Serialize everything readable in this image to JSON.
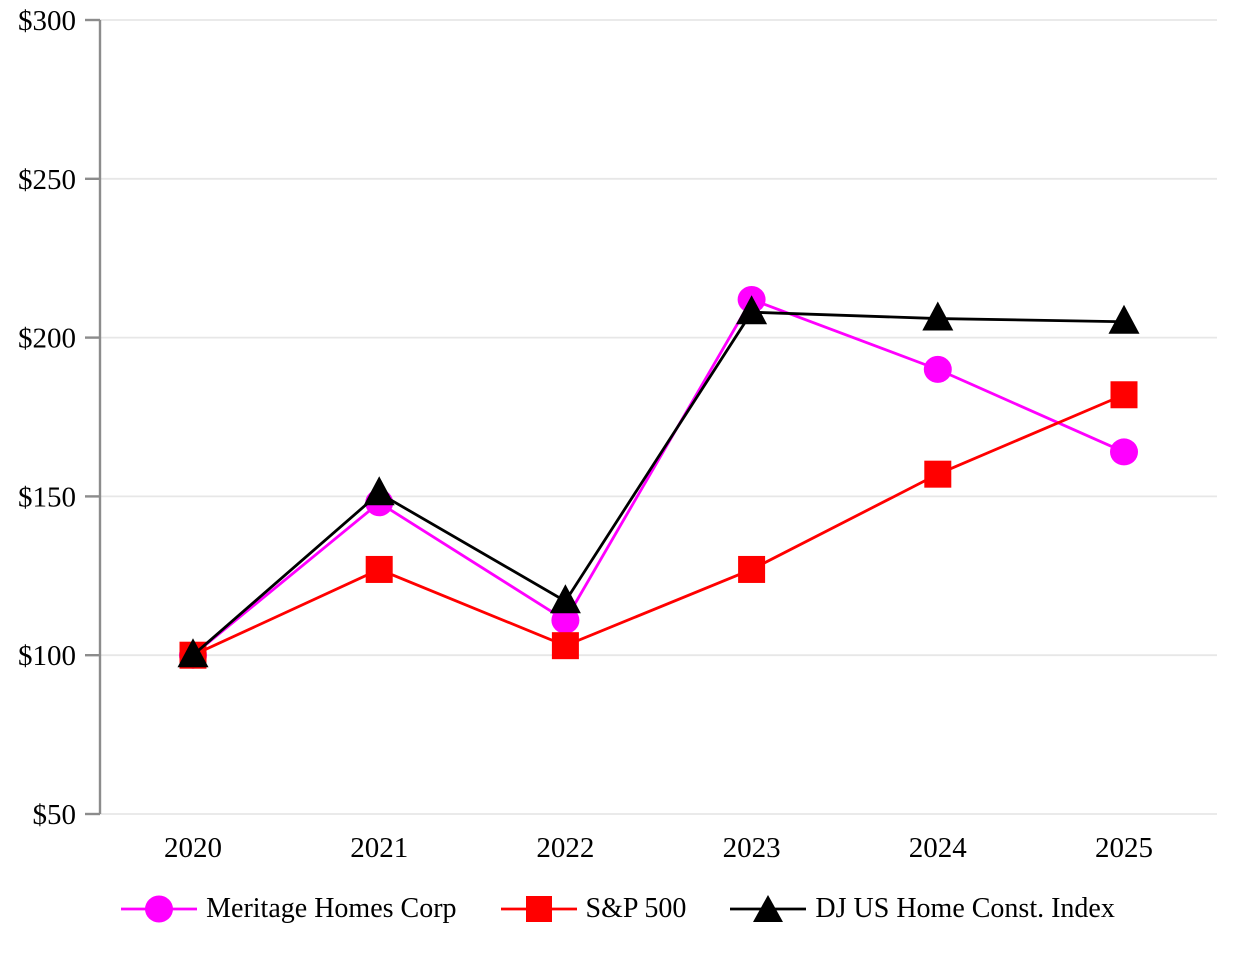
{
  "chart_data": {
    "type": "line",
    "title": "",
    "x": [
      "2020",
      "2021",
      "2022",
      "2023",
      "2024",
      "2025"
    ],
    "xtick_labels": [
      "2020",
      "2021",
      "2022",
      "2023",
      "2024",
      "2025"
    ],
    "ytick_labels": [
      "$50",
      "$100",
      "$150",
      "$200",
      "$250",
      "$300"
    ],
    "ylim": [
      50,
      300
    ],
    "ytick_step": 50,
    "grid": true,
    "legend_position": "bottom",
    "series": [
      {
        "name": "Meritage Homes Corp",
        "marker": "circle",
        "color": "#FF00FF",
        "values": [
          100,
          148,
          111,
          212,
          190,
          164
        ]
      },
      {
        "name": "S&P 500",
        "marker": "square",
        "color": "#FF0000",
        "values": [
          100,
          127,
          103,
          127,
          157,
          182
        ]
      },
      {
        "name": "DJ US Home Const. Index",
        "marker": "triangle",
        "color": "#000000",
        "values": [
          100,
          151,
          117,
          208,
          206,
          205
        ]
      }
    ],
    "colors": {
      "axis": "#8C8C8C",
      "grid": "#E7E7E7",
      "text": "#000000",
      "background": "#FFFFFF"
    }
  }
}
